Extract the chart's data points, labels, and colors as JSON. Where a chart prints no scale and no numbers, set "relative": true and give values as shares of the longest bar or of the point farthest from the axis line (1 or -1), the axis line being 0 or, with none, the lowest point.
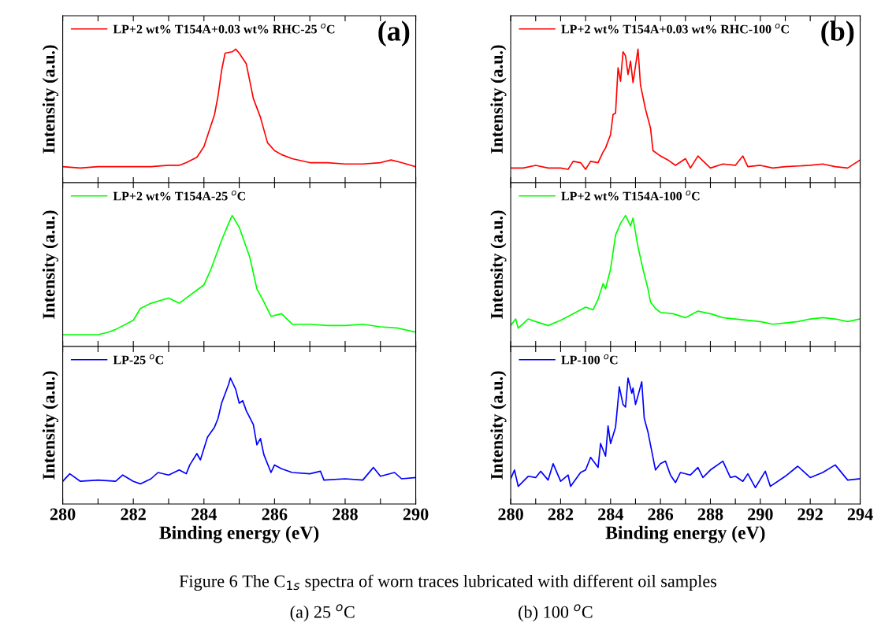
{
  "chart_data": [
    {
      "type": "line",
      "relative": true,
      "ylabel": "Intensity (a.u.)",
      "legend": "top left",
      "tick_labels": false,
      "xlim": [
        280,
        290
      ],
      "xticks": [
        280,
        {
          "value": 281,
          "label": null
        },
        282,
        {
          "value": 283,
          "label": null
        },
        284,
        {
          "value": 285,
          "label": null
        },
        286,
        {
          "value": 287,
          "label": null
        },
        288,
        {
          "value": 289,
          "label": null
        },
        290
      ],
      "annotations": [
        "(a)",
        "Figure 6 The C$_{1s}$ spectra of worn traces lubricated with different oil samples",
        "(a) 25 $^{o}$C",
        "(b) 100 $^{o}$C"
      ],
      "series": [
        {
          "name": "LP+2 wt% T154A+0.03 wt% RHC-25 $^{o}$C",
          "color": "#ff0000",
          "x": [
            280.0,
            280.5,
            281.0,
            281.5,
            282.0,
            282.5,
            283.0,
            283.3,
            283.5,
            283.8,
            284.0,
            284.3,
            284.4,
            284.5,
            284.6,
            284.8,
            284.9,
            285.0,
            285.2,
            285.4,
            285.6,
            285.8,
            286.0,
            286.2,
            286.5,
            287.0,
            287.5,
            288.0,
            288.5,
            289.0,
            289.3,
            289.6,
            290.0
          ],
          "values": [
            0.12,
            0.11,
            0.12,
            0.12,
            0.12,
            0.12,
            0.13,
            0.13,
            0.15,
            0.19,
            0.27,
            0.51,
            0.65,
            0.84,
            0.97,
            0.98,
            1.0,
            0.97,
            0.89,
            0.63,
            0.49,
            0.3,
            0.24,
            0.21,
            0.18,
            0.15,
            0.15,
            0.14,
            0.14,
            0.15,
            0.17,
            0.15,
            0.12
          ]
        }
      ]
    },
    {
      "type": "line",
      "relative": true,
      "ylabel": "Intensity (a.u.)",
      "legend": "top left",
      "tick_labels": false,
      "xlim": [
        280,
        290
      ],
      "xticks": [
        280,
        {
          "value": 281,
          "label": null
        },
        282,
        {
          "value": 283,
          "label": null
        },
        284,
        {
          "value": 285,
          "label": null
        },
        286,
        {
          "value": 287,
          "label": null
        },
        288,
        {
          "value": 289,
          "label": null
        },
        290
      ],
      "series": [
        {
          "name": "LP+2 wt% T154A-25 $^{o}$C",
          "color": "#00ff00",
          "x": [
            280.0,
            280.5,
            281.0,
            281.3,
            281.5,
            282.0,
            282.2,
            282.5,
            283.0,
            283.3,
            283.5,
            284.0,
            284.2,
            284.5,
            284.7,
            284.8,
            285.0,
            285.3,
            285.5,
            285.7,
            285.9,
            286.2,
            286.5,
            287.0,
            287.5,
            288.0,
            288.5,
            289.0,
            289.5,
            290.0
          ],
          "values": [
            0.09,
            0.09,
            0.09,
            0.11,
            0.13,
            0.2,
            0.29,
            0.33,
            0.37,
            0.33,
            0.37,
            0.47,
            0.59,
            0.81,
            0.94,
            1.0,
            0.91,
            0.68,
            0.44,
            0.34,
            0.23,
            0.25,
            0.17,
            0.17,
            0.16,
            0.16,
            0.17,
            0.15,
            0.14,
            0.11
          ]
        }
      ]
    },
    {
      "type": "line",
      "relative": true,
      "ylabel": "Intensity (a.u.)",
      "xlabel": "Binding energy (eV)",
      "legend": "top left",
      "tick_labels": "x",
      "xlim": [
        280,
        290
      ],
      "xticks": [
        280,
        {
          "value": 281,
          "label": null
        },
        282,
        {
          "value": 283,
          "label": null
        },
        284,
        {
          "value": 285,
          "label": null
        },
        286,
        {
          "value": 287,
          "label": null
        },
        288,
        {
          "value": 289,
          "label": null
        },
        290
      ],
      "series": [
        {
          "name": "LP-25 $^{o}$C",
          "color": "#0000ff",
          "x": [
            280.0,
            280.2,
            280.5,
            281.0,
            281.5,
            281.7,
            282.0,
            282.2,
            282.5,
            282.7,
            283.0,
            283.3,
            283.5,
            283.6,
            283.8,
            283.9,
            284.1,
            284.3,
            284.4,
            284.5,
            284.7,
            284.75,
            284.9,
            285.0,
            285.1,
            285.2,
            285.4,
            285.5,
            285.6,
            285.7,
            285.9,
            286.0,
            286.2,
            286.5,
            287.0,
            287.3,
            287.4,
            288.0,
            288.5,
            288.8,
            289.0,
            289.4,
            289.6,
            290.0
          ],
          "values": [
            0.18,
            0.24,
            0.18,
            0.19,
            0.18,
            0.23,
            0.18,
            0.16,
            0.2,
            0.25,
            0.23,
            0.27,
            0.24,
            0.31,
            0.4,
            0.35,
            0.53,
            0.61,
            0.68,
            0.8,
            0.95,
            1.0,
            0.91,
            0.8,
            0.82,
            0.74,
            0.63,
            0.47,
            0.52,
            0.39,
            0.25,
            0.31,
            0.28,
            0.25,
            0.24,
            0.26,
            0.19,
            0.2,
            0.19,
            0.29,
            0.22,
            0.25,
            0.2,
            0.21
          ]
        }
      ]
    },
    {
      "type": "line",
      "relative": true,
      "ylabel": "Intensity (a.u.)",
      "legend": "top left",
      "tick_labels": false,
      "xlim": [
        280,
        294
      ],
      "xticks": [
        280,
        {
          "value": 281,
          "label": null
        },
        282,
        {
          "value": 283,
          "label": null
        },
        284,
        {
          "value": 285,
          "label": null
        },
        286,
        {
          "value": 287,
          "label": null
        },
        288,
        {
          "value": 289,
          "label": null
        },
        290,
        {
          "value": 291,
          "label": null
        },
        292,
        {
          "value": 293,
          "label": null
        },
        294
      ],
      "annotations": [
        "(b)"
      ],
      "series": [
        {
          "name": "LP+2 wt% T154A+0.03 wt% RHC-100 $^{o}$C",
          "color": "#ff0000",
          "x": [
            280.0,
            280.5,
            281.0,
            281.5,
            282.0,
            282.3,
            282.5,
            282.8,
            283.0,
            283.2,
            283.5,
            283.7,
            283.8,
            284.0,
            284.1,
            284.2,
            284.3,
            284.4,
            284.5,
            284.6,
            284.7,
            284.8,
            284.9,
            285.1,
            285.2,
            285.4,
            285.6,
            285.7,
            286.0,
            286.3,
            286.6,
            287.0,
            287.2,
            287.5,
            288.0,
            288.5,
            289.0,
            289.3,
            289.5,
            290.0,
            290.5,
            291.0,
            292.0,
            292.5,
            293.0,
            293.5,
            294.0
          ],
          "values": [
            0.11,
            0.11,
            0.13,
            0.11,
            0.11,
            0.1,
            0.16,
            0.15,
            0.1,
            0.16,
            0.15,
            0.23,
            0.26,
            0.36,
            0.51,
            0.52,
            0.86,
            0.76,
            0.98,
            0.95,
            0.81,
            0.91,
            0.75,
            1.0,
            0.73,
            0.55,
            0.41,
            0.24,
            0.2,
            0.17,
            0.13,
            0.18,
            0.11,
            0.2,
            0.11,
            0.14,
            0.13,
            0.2,
            0.12,
            0.13,
            0.11,
            0.12,
            0.13,
            0.14,
            0.12,
            0.11,
            0.17
          ]
        }
      ]
    },
    {
      "type": "line",
      "relative": true,
      "ylabel": "Intensity (a.u.)",
      "legend": "top left",
      "tick_labels": false,
      "xlim": [
        280,
        294
      ],
      "xticks": [
        280,
        {
          "value": 281,
          "label": null
        },
        282,
        {
          "value": 283,
          "label": null
        },
        284,
        {
          "value": 285,
          "label": null
        },
        286,
        {
          "value": 287,
          "label": null
        },
        288,
        {
          "value": 289,
          "label": null
        },
        290,
        {
          "value": 291,
          "label": null
        },
        292,
        {
          "value": 293,
          "label": null
        },
        294
      ],
      "series": [
        {
          "name": "LP+2 wt% T154A-100 $^{o}$C",
          "color": "#00ff00",
          "x": [
            280.0,
            280.2,
            280.3,
            280.7,
            281.0,
            281.5,
            282.0,
            282.5,
            283.0,
            283.3,
            283.5,
            283.7,
            283.8,
            284.0,
            284.2,
            284.4,
            284.6,
            284.8,
            284.9,
            285.1,
            285.3,
            285.5,
            285.6,
            285.8,
            286.0,
            286.5,
            287.0,
            287.5,
            288.0,
            288.5,
            289.0,
            290.0,
            290.5,
            291.0,
            291.5,
            292.0,
            292.5,
            293.0,
            293.5,
            294.0
          ],
          "values": [
            0.16,
            0.21,
            0.14,
            0.21,
            0.19,
            0.16,
            0.2,
            0.25,
            0.3,
            0.28,
            0.36,
            0.48,
            0.44,
            0.59,
            0.85,
            0.94,
            1.0,
            0.92,
            0.98,
            0.76,
            0.59,
            0.44,
            0.34,
            0.29,
            0.26,
            0.25,
            0.22,
            0.27,
            0.25,
            0.22,
            0.21,
            0.19,
            0.17,
            0.18,
            0.19,
            0.21,
            0.22,
            0.21,
            0.19,
            0.21
          ]
        }
      ]
    },
    {
      "type": "line",
      "relative": true,
      "ylabel": "Intensity (a.u.)",
      "xlabel": "Binding energy (eV)",
      "legend": "top left",
      "tick_labels": "x",
      "xlim": [
        280,
        294
      ],
      "xticks": [
        280,
        {
          "value": 281,
          "label": null
        },
        282,
        {
          "value": 283,
          "label": null
        },
        284,
        {
          "value": 285,
          "label": null
        },
        286,
        {
          "value": 287,
          "label": null
        },
        288,
        {
          "value": 289,
          "label": null
        },
        290,
        {
          "value": 291,
          "label": null
        },
        292,
        {
          "value": 293,
          "label": null
        },
        294
      ],
      "series": [
        {
          "name": "LP-100 $^{o}$C",
          "color": "#0000ff",
          "x": [
            280.0,
            280.15,
            280.3,
            280.7,
            281.0,
            281.2,
            281.5,
            281.7,
            282.0,
            282.3,
            282.4,
            282.8,
            283.0,
            283.2,
            283.5,
            283.6,
            283.8,
            283.9,
            284.0,
            284.2,
            284.3,
            284.35,
            284.5,
            284.6,
            284.7,
            284.85,
            284.9,
            285.0,
            285.1,
            285.25,
            285.35,
            285.5,
            285.7,
            285.8,
            286.0,
            286.2,
            286.4,
            286.6,
            286.8,
            287.2,
            287.5,
            287.7,
            288.0,
            288.5,
            288.8,
            289.0,
            289.3,
            289.5,
            289.8,
            290.2,
            290.4,
            291.0,
            291.5,
            292.0,
            292.5,
            293.0,
            293.5,
            294.0
          ],
          "values": [
            0.2,
            0.27,
            0.14,
            0.22,
            0.21,
            0.26,
            0.19,
            0.32,
            0.18,
            0.23,
            0.14,
            0.25,
            0.27,
            0.37,
            0.29,
            0.48,
            0.38,
            0.62,
            0.48,
            0.61,
            0.82,
            0.93,
            0.79,
            0.77,
            1.0,
            0.88,
            0.92,
            0.79,
            0.86,
            0.97,
            0.68,
            0.57,
            0.37,
            0.27,
            0.32,
            0.34,
            0.23,
            0.17,
            0.25,
            0.23,
            0.29,
            0.21,
            0.27,
            0.34,
            0.21,
            0.22,
            0.18,
            0.24,
            0.13,
            0.26,
            0.14,
            0.22,
            0.3,
            0.21,
            0.25,
            0.31,
            0.19,
            0.2
          ]
        }
      ]
    }
  ]
}
